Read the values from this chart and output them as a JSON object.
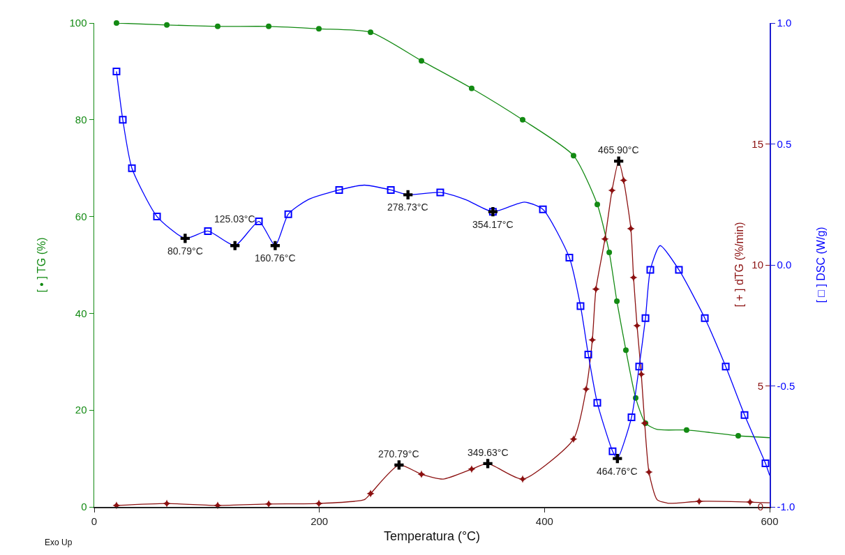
{
  "chart_data": {
    "type": "line",
    "xlabel": "Temperatura (°C)",
    "ylabel": "[ • ] TG (%)",
    "y2label": "[ + ] dTG (%/min)",
    "y3label": "[ □ ] DSC (W/g)",
    "xlim": [
      0,
      600
    ],
    "xticks": [
      0,
      200,
      400,
      600
    ],
    "ylim": [
      0,
      100
    ],
    "yticks": [
      0,
      20,
      40,
      60,
      80,
      100
    ],
    "y2lim": [
      0,
      20
    ],
    "y2ticks": [
      0,
      5,
      10,
      15
    ],
    "y3lim": [
      -1,
      1
    ],
    "y3ticks": [
      {
        "value": -1,
        "label": "-1.0"
      },
      {
        "value": -0.5,
        "label": "-0.5"
      },
      {
        "value": 0,
        "label": "0.0"
      },
      {
        "value": 0.5,
        "label": "0.5"
      },
      {
        "value": 1,
        "label": "1.0"
      }
    ],
    "grid": false,
    "annotations": [
      "Exo Up",
      {
        "text": "80.79°C",
        "x": 80.79,
        "y": 55.5
      },
      {
        "text": "125.03°C",
        "x": 125.03,
        "y": 54
      },
      {
        "text": "160.76°C",
        "x": 160.76,
        "y": 54
      },
      {
        "text": "278.73°C",
        "x": 278.73,
        "y": 64.5
      },
      {
        "text": "354.17°C",
        "x": 354.17,
        "y": 61
      },
      {
        "text": "464.76°C",
        "x": 464.76,
        "y": 10
      },
      {
        "text": "270.79°C",
        "x": 270.79,
        "y": 8.65
      },
      {
        "text": "349.63°C",
        "x": 349.63,
        "y": 8.95
      },
      {
        "text": "465.90°C",
        "x": 465.9,
        "y": 71.45
      }
    ],
    "series": [
      {
        "axis": "y",
        "color": "#138a13",
        "marker": "none",
        "x": [
          19.8,
          64.5,
          109.7,
          155,
          199.6,
          245.5,
          290.7,
          335.3,
          380.6,
          425.8,
          446.9,
          457.5,
          464.3,
          472.3,
          481,
          489.7,
          500,
          526.2,
          550,
          572.1,
          600
        ],
        "values": [
          100,
          99.6,
          99.3,
          99.3,
          98.8,
          98.1,
          92.2,
          86.5,
          80.0,
          72.6,
          62.5,
          52.6,
          42.5,
          32.4,
          22.5,
          17.3,
          16.0,
          15.9,
          15.3,
          14.7,
          14.3
        ]
      },
      {
        "type": "scatter",
        "axis": "y",
        "color": "#138a13",
        "marker": "circle",
        "x": [
          19.8,
          64.5,
          109.7,
          155,
          199.6,
          245.5,
          290.7,
          335.3,
          380.6,
          425.8,
          446.9,
          457.5,
          464.3,
          472.3,
          481,
          489.7,
          526.2,
          572.1
        ],
        "values": [
          100,
          99.6,
          99.3,
          99.3,
          98.8,
          98.1,
          92.2,
          86.5,
          80.0,
          72.6,
          62.5,
          52.6,
          42.5,
          32.4,
          22.5,
          17.3,
          15.9,
          14.7
        ]
      },
      {
        "axis": "y2",
        "color": "#8b1010",
        "marker": "none",
        "x": [
          19.8,
          64.5,
          109.7,
          155,
          199.6,
          240,
          245.5,
          270.79,
          290.7,
          310,
          335.3,
          349.63,
          380.6,
          425.8,
          437,
          442.5,
          445.7,
          453.7,
          460,
          465.9,
          470.3,
          476.7,
          479.1,
          482.2,
          486,
          489,
          492.8,
          500,
          510,
          537.4,
          582.6,
          600
        ],
        "values": [
          0.06,
          0.14,
          0.06,
          0.12,
          0.14,
          0.3,
          0.55,
          1.73,
          1.35,
          1.15,
          1.56,
          1.79,
          1.15,
          2.8,
          4.87,
          6.9,
          9.0,
          11.07,
          13.08,
          14.29,
          13.5,
          11.5,
          9.48,
          7.49,
          5.48,
          3.46,
          1.44,
          0.3,
          0.15,
          0.23,
          0.2,
          0.17
        ]
      },
      {
        "type": "scatter",
        "axis": "y2",
        "color": "#8b1010",
        "marker": "star",
        "x": [
          19.8,
          64.5,
          109.7,
          155,
          199.6,
          245.5,
          290.7,
          335.3,
          380.6,
          425.8,
          437,
          442.5,
          445.7,
          453.7,
          460,
          470.3,
          476.7,
          479.1,
          482.2,
          486,
          489,
          492.8,
          537.4,
          582.6
        ],
        "values": [
          0.06,
          0.14,
          0.06,
          0.12,
          0.14,
          0.55,
          1.35,
          1.56,
          1.15,
          2.8,
          4.87,
          6.9,
          9.0,
          11.07,
          13.08,
          13.5,
          11.5,
          9.48,
          7.49,
          5.48,
          3.46,
          1.44,
          0.23,
          0.2
        ]
      },
      {
        "axis": "y3",
        "color": "#0000ff",
        "marker": "none",
        "x": [
          19.8,
          25.4,
          33.5,
          55.8,
          80.79,
          101,
          125.03,
          146.3,
          160.76,
          172.4,
          190,
          217.6,
          240,
          263.5,
          278.73,
          307.4,
          330,
          354.17,
          382,
          398.6,
          422.1,
          432,
          438.9,
          446.9,
          460.5,
          464.76,
          477.3,
          484.1,
          489.7,
          494,
          502.7,
          519.4,
          542.4,
          561,
          577.7,
          596.3,
          600
        ],
        "values": [
          0.8,
          0.6,
          0.4,
          0.2,
          0.11,
          0.14,
          0.08,
          0.18,
          0.08,
          0.21,
          0.27,
          0.31,
          0.33,
          0.31,
          0.29,
          0.3,
          0.27,
          0.22,
          0.26,
          0.23,
          0.03,
          -0.17,
          -0.37,
          -0.57,
          -0.77,
          -0.8,
          -0.63,
          -0.42,
          -0.22,
          -0.02,
          0.08,
          -0.02,
          -0.22,
          -0.42,
          -0.62,
          -0.82,
          -0.87
        ]
      },
      {
        "type": "scatter",
        "axis": "y3",
        "color": "#0000ff",
        "marker": "square",
        "x": [
          19.8,
          25.4,
          33.5,
          55.8,
          101,
          146.3,
          172.4,
          217.6,
          263.5,
          307.4,
          354.17,
          398.6,
          422.1,
          432,
          438.9,
          446.9,
          460.5,
          477.3,
          484.1,
          489.7,
          494,
          519.4,
          542.4,
          561,
          577.7,
          596.3
        ],
        "values": [
          0.8,
          0.6,
          0.4,
          0.2,
          0.14,
          0.18,
          0.21,
          0.31,
          0.31,
          0.3,
          0.22,
          0.23,
          0.03,
          -0.17,
          -0.37,
          -0.57,
          -0.77,
          -0.63,
          -0.42,
          -0.22,
          -0.02,
          -0.02,
          -0.22,
          -0.42,
          -0.62,
          -0.82
        ]
      },
      {
        "type": "scatter",
        "axis": "y3",
        "color": "#000000",
        "marker": "cross",
        "x": [
          80.79,
          125.03,
          160.76,
          278.73,
          354.17,
          464.76
        ],
        "values": [
          0.11,
          0.08,
          0.08,
          0.29,
          0.22,
          -0.8
        ]
      },
      {
        "type": "scatter",
        "axis": "y2",
        "color": "#000000",
        "marker": "cross",
        "x": [
          270.79,
          349.63,
          465.9
        ],
        "values": [
          1.73,
          1.79,
          14.29
        ]
      }
    ]
  }
}
